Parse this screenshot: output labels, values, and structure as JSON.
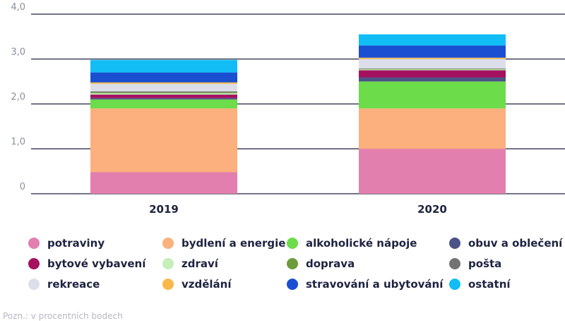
{
  "chart_data": {
    "type": "bar",
    "stacked": true,
    "categories": [
      "2019",
      "2020"
    ],
    "ylim": [
      0,
      4.0
    ],
    "y_ticks": [
      "0",
      "1,0",
      "2,0",
      "3,0",
      "4,0"
    ],
    "y_tick_values": [
      0,
      1,
      2,
      3,
      4
    ],
    "series": [
      {
        "name": "potraviny",
        "color": "#e37fae",
        "values": [
          0.48,
          1.0
        ]
      },
      {
        "name": "bydlení a energie",
        "color": "#fbb07e",
        "values": [
          1.42,
          0.9
        ]
      },
      {
        "name": "alkoholické nápoje",
        "color": "#6cdc4a",
        "values": [
          0.2,
          0.6
        ]
      },
      {
        "name": "obuv a oblečení",
        "color": "#4a5286",
        "values": [
          0.03,
          0.09
        ]
      },
      {
        "name": "bytové vybavení",
        "color": "#a3115f",
        "values": [
          0.08,
          0.16
        ]
      },
      {
        "name": "zdraví",
        "color": "#c5efb8",
        "values": [
          0.03,
          0.02
        ]
      },
      {
        "name": "doprava",
        "color": "#6d9b3c",
        "values": [
          0.02,
          0.01
        ]
      },
      {
        "name": "pošta",
        "color": "#737373",
        "values": [
          0.02,
          0.01
        ]
      },
      {
        "name": "rekreace",
        "color": "#dcdfea",
        "values": [
          0.17,
          0.21
        ]
      },
      {
        "name": "vzdělání",
        "color": "#f8b94a",
        "values": [
          0.03,
          0.03
        ]
      },
      {
        "name": "stravování a ubytování",
        "color": "#1b4fd1",
        "values": [
          0.22,
          0.27
        ]
      },
      {
        "name": "ostatní",
        "color": "#12bdf5",
        "values": [
          0.28,
          0.25
        ]
      }
    ],
    "legend_position": "bottom",
    "grid": true
  },
  "note": "Pozn.: v procentních bodech"
}
